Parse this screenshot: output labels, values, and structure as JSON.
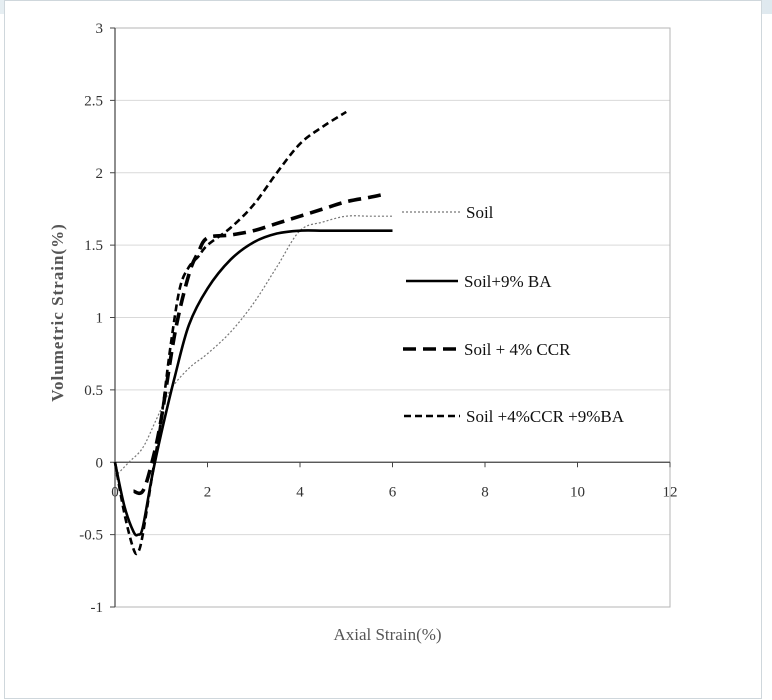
{
  "chart_data": {
    "type": "line",
    "xlabel": "Axial Strain(%)",
    "ylabel": "Volumetric Strain(%)",
    "xlim": [
      0,
      12
    ],
    "ylim": [
      -1,
      3
    ],
    "x_ticks": [
      "0",
      "2",
      "4",
      "6",
      "8",
      "10",
      "12"
    ],
    "y_ticks": [
      "-1",
      "-0.5",
      "0",
      "0.5",
      "1",
      "1.5",
      "2",
      "2.5",
      "3"
    ],
    "grid": "horizontal",
    "legend_position": "right",
    "series": [
      {
        "name": "Soil",
        "style": "dotted-thin",
        "color": "#777777",
        "x": [
          0,
          0.3,
          0.6,
          0.9,
          1.2,
          1.6,
          2.0,
          2.5,
          3.0,
          3.5,
          4.0,
          4.5,
          5.0,
          5.5,
          6.0
        ],
        "y": [
          -0.1,
          0.0,
          0.1,
          0.3,
          0.5,
          0.65,
          0.75,
          0.9,
          1.1,
          1.35,
          1.6,
          1.66,
          1.7,
          1.7,
          1.7
        ]
      },
      {
        "name": "Soil+9% BA",
        "style": "solid",
        "color": "#000000",
        "x": [
          0,
          0.2,
          0.4,
          0.5,
          0.6,
          0.8,
          1.0,
          1.3,
          1.6,
          2.0,
          2.5,
          3.0,
          3.5,
          4.0,
          4.5,
          5.0,
          5.5,
          6.0
        ],
        "y": [
          0,
          -0.3,
          -0.48,
          -0.5,
          -0.45,
          -0.1,
          0.2,
          0.6,
          0.95,
          1.2,
          1.4,
          1.52,
          1.58,
          1.6,
          1.6,
          1.6,
          1.6,
          1.6
        ]
      },
      {
        "name": "Soil + 4% CCR",
        "style": "dashed-thick",
        "color": "#000000",
        "x": [
          0.4,
          0.6,
          0.8,
          1.0,
          1.3,
          1.6,
          1.8,
          2.0,
          2.5,
          3.0,
          3.5,
          4.0,
          4.5,
          5.0,
          5.5,
          5.8
        ],
        "y": [
          -0.2,
          -0.2,
          0.0,
          0.3,
          0.9,
          1.3,
          1.45,
          1.55,
          1.57,
          1.6,
          1.65,
          1.7,
          1.75,
          1.8,
          1.83,
          1.85
        ]
      },
      {
        "name": "Soil +4%CCR +9%BA",
        "style": "dashed",
        "color": "#000000",
        "x": [
          0,
          0.2,
          0.4,
          0.5,
          0.6,
          0.8,
          1.0,
          1.2,
          1.4,
          1.6,
          1.8,
          2.0,
          2.5,
          3.0,
          3.5,
          4.0,
          4.5,
          5.0
        ],
        "y": [
          0,
          -0.35,
          -0.6,
          -0.62,
          -0.5,
          -0.1,
          0.3,
          0.8,
          1.2,
          1.35,
          1.42,
          1.5,
          1.62,
          1.78,
          2.0,
          2.2,
          2.32,
          2.42
        ]
      }
    ]
  }
}
